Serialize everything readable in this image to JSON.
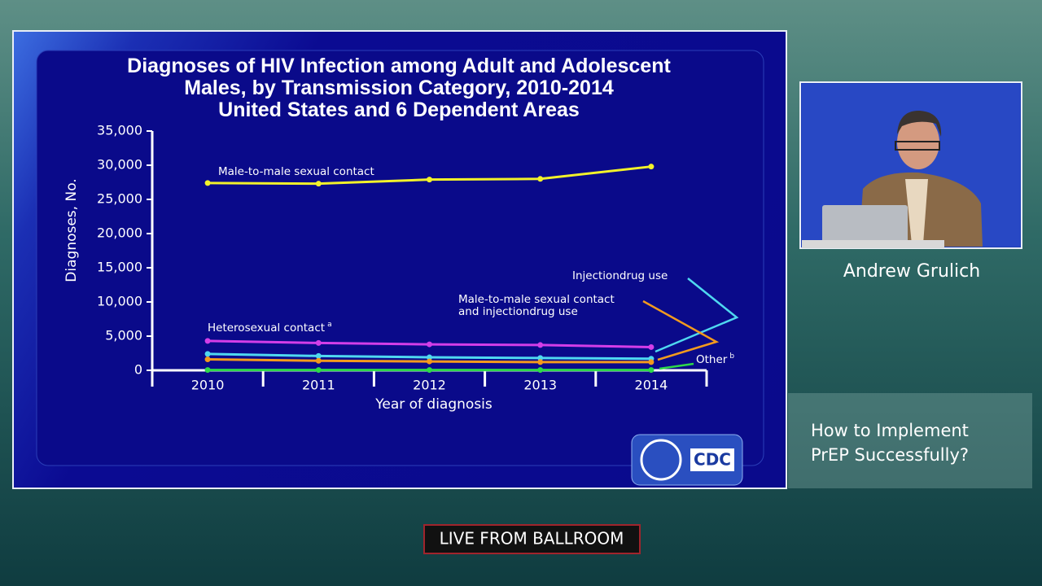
{
  "chart_data": {
    "type": "line",
    "title": "Diagnoses of HIV Infection among Adult and Adolescent\nMales, by Transmission Category, 2010-2014\nUnited States and 6 Dependent Areas",
    "x_label": "Year of diagnosis",
    "y_label": "Diagnoses, No.",
    "categories": [
      "2010",
      "2011",
      "2012",
      "2013",
      "2014"
    ],
    "ylim": [
      0,
      35000
    ],
    "yticks": [
      0,
      {
        "value": 5000,
        "label": "5,000"
      },
      {
        "value": 10000,
        "label": "10,000"
      },
      {
        "value": 15000,
        "label": "15,000"
      },
      {
        "value": 20000,
        "label": "20,000"
      },
      {
        "value": 25000,
        "label": "25,000"
      },
      {
        "value": 30000,
        "label": "30,000"
      },
      {
        "value": 35000,
        "label": "35,000"
      }
    ],
    "series": [
      {
        "name": "Male-to-male sexual contact",
        "color": "#f2f22a",
        "values": [
          27400,
          27300,
          27900,
          28000,
          29800
        ]
      },
      {
        "name": "Heterosexual  contact",
        "note": "a",
        "color": "#d33ee8",
        "values": [
          4300,
          4000,
          3800,
          3700,
          3400
        ]
      },
      {
        "name": "Injectiondrug use",
        "color": "#4fd8f0",
        "values": [
          2400,
          2100,
          1900,
          1800,
          1700
        ]
      },
      {
        "name": "Male-to-male sexual contact\nand injectiondrug use",
        "color": "#f29a1e",
        "values": [
          1600,
          1400,
          1300,
          1200,
          1200
        ]
      },
      {
        "name": "Other",
        "note": "b",
        "color": "#2ed94a",
        "values": [
          50,
          50,
          50,
          50,
          50
        ]
      }
    ],
    "logo_text": "CDC"
  },
  "speaker": "Andrew Grulich",
  "session_title": "How to Implement\nPrEP Successfully?",
  "banner": "LIVE FROM BALLROOM"
}
